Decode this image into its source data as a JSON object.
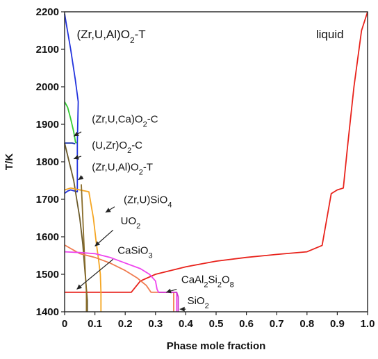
{
  "chart_data": {
    "type": "line",
    "xlabel": "Phase mole fraction",
    "ylabel": "T/K",
    "xlim": [
      0,
      1.0
    ],
    "ylim": [
      1400,
      2200
    ],
    "xticks": [
      "0",
      "0.1",
      "0.2",
      "0.3",
      "0.4",
      "0.5",
      "0.6",
      "0.7",
      "0.8",
      "0.9",
      "1.0"
    ],
    "yticks": [
      "1400",
      "1500",
      "1600",
      "1700",
      "1800",
      "1900",
      "2000",
      "2100",
      "2200"
    ],
    "grid": false,
    "series": [
      {
        "key": "liquid",
        "color": "#e8221b",
        "points": [
          [
            1.0,
            2200
          ],
          [
            0.98,
            2150
          ],
          [
            0.955,
            2000
          ],
          [
            0.935,
            1850
          ],
          [
            0.92,
            1730
          ],
          [
            0.9,
            1725
          ],
          [
            0.88,
            1715
          ],
          [
            0.85,
            1577
          ],
          [
            0.8,
            1560
          ],
          [
            0.7,
            1553
          ],
          [
            0.6,
            1545
          ],
          [
            0.5,
            1535
          ],
          [
            0.4,
            1520
          ],
          [
            0.35,
            1510
          ],
          [
            0.3,
            1500
          ],
          [
            0.25,
            1482
          ],
          [
            0.22,
            1452
          ],
          [
            0.0,
            1452
          ]
        ]
      },
      {
        "key": "zr_u_al_o2_t_high",
        "color": "#2233dd",
        "points": [
          [
            0.0,
            2195
          ],
          [
            0.005,
            2170
          ],
          [
            0.02,
            2100
          ],
          [
            0.035,
            2020
          ],
          [
            0.045,
            1960
          ],
          [
            0.042,
            1850
          ],
          [
            0.042,
            1720
          ],
          [
            0.02,
            1725
          ],
          [
            0.01,
            1722
          ],
          [
            0.0,
            1716
          ]
        ]
      },
      {
        "key": "zr_u_ca_o2_c",
        "color": "#33cc33",
        "points": [
          [
            0.0,
            1960
          ],
          [
            0.01,
            1945
          ],
          [
            0.02,
            1915
          ],
          [
            0.03,
            1880
          ],
          [
            0.036,
            1852
          ],
          [
            0.04,
            1850
          ]
        ]
      },
      {
        "key": "u_zr_o2_c",
        "color": "#1a33aa",
        "points": [
          [
            0.0,
            1850
          ],
          [
            0.025,
            1850
          ],
          [
            0.035,
            1848
          ]
        ]
      },
      {
        "key": "zr_u_al_o2_t_low",
        "color": "#6b5a2a",
        "points": [
          [
            0.0,
            1850
          ],
          [
            0.015,
            1800
          ],
          [
            0.03,
            1750
          ],
          [
            0.04,
            1700
          ],
          [
            0.05,
            1650
          ],
          [
            0.06,
            1580
          ],
          [
            0.065,
            1530
          ],
          [
            0.07,
            1480
          ],
          [
            0.075,
            1430
          ],
          [
            0.075,
            1400
          ]
        ]
      },
      {
        "key": "zr_u_sio4",
        "color": "#f5a623",
        "points": [
          [
            0.0,
            1725
          ],
          [
            0.02,
            1730
          ],
          [
            0.05,
            1725
          ],
          [
            0.08,
            1720
          ],
          [
            0.095,
            1650
          ],
          [
            0.105,
            1580
          ],
          [
            0.112,
            1540
          ],
          [
            0.118,
            1500
          ],
          [
            0.12,
            1452
          ],
          [
            0.12,
            1400
          ]
        ]
      },
      {
        "key": "uo2",
        "color": "#8a6d2a",
        "points": [
          [
            0.055,
            1740
          ],
          [
            0.06,
            1650
          ],
          [
            0.065,
            1560
          ],
          [
            0.07,
            1480
          ],
          [
            0.072,
            1452
          ],
          [
            0.072,
            1400
          ]
        ]
      },
      {
        "key": "casio3",
        "color": "#f07b4f",
        "points": [
          [
            0.0,
            1578
          ],
          [
            0.05,
            1555
          ],
          [
            0.1,
            1545
          ],
          [
            0.15,
            1530
          ],
          [
            0.2,
            1510
          ],
          [
            0.24,
            1490
          ],
          [
            0.27,
            1470
          ],
          [
            0.285,
            1452
          ],
          [
            0.36,
            1452
          ],
          [
            0.36,
            1400
          ]
        ]
      },
      {
        "key": "caal2si2o8",
        "color": "#ee44ee",
        "points": [
          [
            0.0,
            1560
          ],
          [
            0.05,
            1558
          ],
          [
            0.1,
            1555
          ],
          [
            0.15,
            1545
          ],
          [
            0.2,
            1530
          ],
          [
            0.25,
            1515
          ],
          [
            0.28,
            1500
          ],
          [
            0.3,
            1482
          ],
          [
            0.305,
            1460
          ],
          [
            0.31,
            1452
          ],
          [
            0.35,
            1452
          ],
          [
            0.37,
            1452
          ],
          [
            0.37,
            1400
          ]
        ]
      },
      {
        "key": "sio2",
        "color": "#cc33cc",
        "points": [
          [
            0.31,
            1452
          ],
          [
            0.37,
            1452
          ],
          [
            0.375,
            1440
          ],
          [
            0.375,
            1400
          ]
        ]
      }
    ],
    "annotations": [
      {
        "key": "a_zrual_top",
        "lines": [
          [
            "(Zr,U,Al)O",
            "2",
            "-T"
          ]
        ],
        "anchor": [
          0.04,
          2130
        ],
        "size": "big"
      },
      {
        "key": "a_liquid",
        "lines": [
          [
            "liquid"
          ]
        ],
        "anchor": [
          0.83,
          2130
        ],
        "size": "big"
      },
      {
        "key": "a_zruca",
        "lines": [
          [
            "(Zr,U,Ca)O",
            "2",
            "-C"
          ]
        ],
        "anchor": [
          0.09,
          1905
        ],
        "arrow": [
          0.055,
          1880
        ],
        "tip": [
          0.03,
          1868
        ]
      },
      {
        "key": "a_uzr",
        "lines": [
          [
            "(U,Zr)O",
            "2",
            "-C"
          ]
        ],
        "anchor": [
          0.09,
          1835
        ],
        "arrow": [
          0.055,
          1815
        ],
        "tip": [
          0.03,
          1808
        ]
      },
      {
        "key": "a_zrual_mid",
        "lines": [
          [
            "(Zr,U,Al)O",
            "2",
            "-T"
          ]
        ],
        "anchor": [
          0.09,
          1777
        ],
        "arrow": [
          0.06,
          1760
        ],
        "tip": [
          0.045,
          1752
        ]
      },
      {
        "key": "a_zrusio4",
        "lines": [
          [
            "(Zr,U)SiO",
            "4",
            ""
          ]
        ],
        "anchor": [
          0.195,
          1690
        ],
        "arrow": [
          0.165,
          1680
        ],
        "tip": [
          0.135,
          1665
        ]
      },
      {
        "key": "a_uo2",
        "lines": [
          [
            "UO",
            "2",
            ""
          ]
        ],
        "anchor": [
          0.185,
          1633
        ],
        "arrow": [
          0.16,
          1618
        ],
        "tip": [
          0.1,
          1575
        ]
      },
      {
        "key": "a_casio3",
        "lines": [
          [
            "CaSiO",
            "3",
            ""
          ]
        ],
        "anchor": [
          0.175,
          1555
        ],
        "arrow": [
          0.16,
          1540
        ],
        "tip": [
          0.04,
          1460
        ]
      },
      {
        "key": "a_caal",
        "lines": [
          [
            "CaAl",
            "2",
            "Si",
            "2",
            "O",
            "8"
          ]
        ],
        "anchor": [
          0.385,
          1477
        ],
        "arrow": [
          0.37,
          1460
        ],
        "tip": [
          0.335,
          1452
        ]
      },
      {
        "key": "a_sio2",
        "lines": [
          [
            "SiO",
            "2",
            ""
          ]
        ],
        "anchor": [
          0.405,
          1420
        ],
        "arrow": [
          0.4,
          1407
        ],
        "tip": [
          0.38,
          1407
        ]
      }
    ]
  }
}
